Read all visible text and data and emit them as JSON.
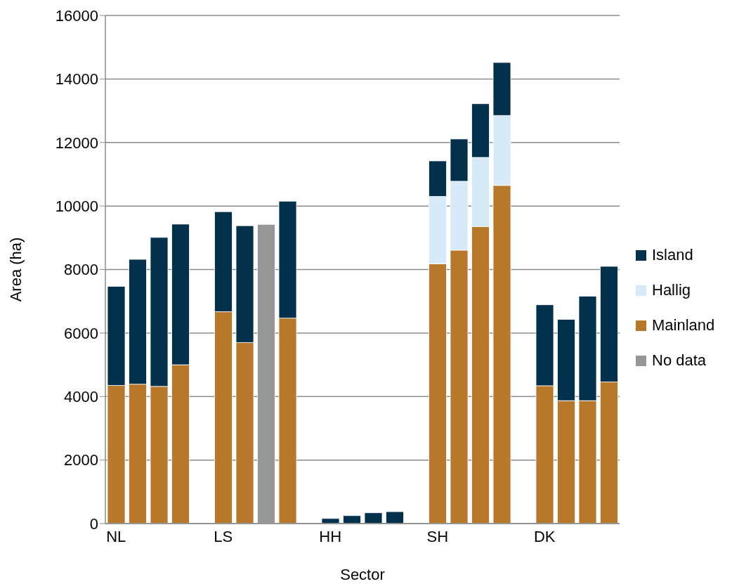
{
  "chart_data": {
    "type": "bar",
    "stacked": true,
    "xlabel": "Sector",
    "ylabel": "Area (ha)",
    "categories": [
      "NL",
      null,
      null,
      null,
      null,
      "LS",
      null,
      null,
      null,
      null,
      "HH",
      null,
      null,
      null,
      null,
      "SH",
      null,
      null,
      null,
      null,
      "DK",
      null,
      null,
      null
    ],
    "series": [
      {
        "name": "No data",
        "color": "#969696",
        "values": [
          null,
          null,
          null,
          null,
          null,
          null,
          null,
          9420,
          null,
          null,
          null,
          null,
          null,
          null,
          null,
          null,
          null,
          null,
          null,
          null,
          null,
          null,
          null,
          null
        ]
      },
      {
        "name": "Mainland",
        "color": "#b8782a",
        "values": [
          4350,
          4390,
          4320,
          5000,
          null,
          6670,
          5700,
          null,
          6470,
          null,
          null,
          null,
          null,
          null,
          null,
          8180,
          8610,
          9350,
          10650,
          null,
          4340,
          3870,
          3870,
          4460
        ]
      },
      {
        "name": "Hallig",
        "color": "#d6ebf7",
        "values": [
          null,
          null,
          null,
          null,
          null,
          null,
          null,
          null,
          null,
          null,
          null,
          null,
          null,
          null,
          null,
          2120,
          2170,
          2180,
          2200,
          null,
          null,
          null,
          null,
          null
        ]
      },
      {
        "name": "Island",
        "color": "#03304a",
        "values": [
          3120,
          3930,
          4690,
          4430,
          null,
          3150,
          3680,
          null,
          3680,
          null,
          160,
          250,
          340,
          375,
          null,
          1120,
          1330,
          1690,
          1670,
          null,
          2550,
          2560,
          3290,
          3640
        ]
      }
    ],
    "ylim": [
      0,
      16000
    ],
    "yticks": [
      0,
      2000,
      4000,
      6000,
      8000,
      10000,
      12000,
      14000,
      16000
    ],
    "grid": "y",
    "legend": "right"
  }
}
